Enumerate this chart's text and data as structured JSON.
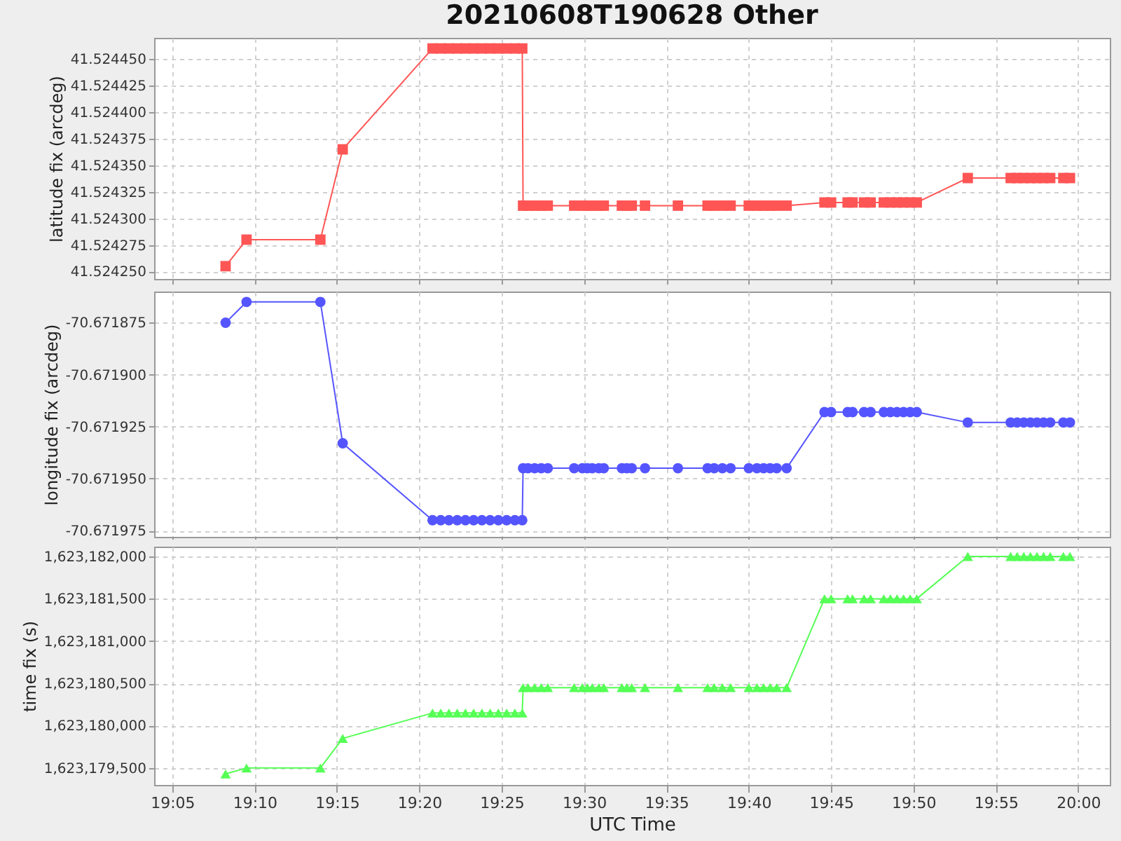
{
  "chart_data": [
    {
      "type": "line",
      "title": "20210608T190628 Other",
      "ylabel": "latitude fix (arcdeg)",
      "marker": "square",
      "grid": true,
      "tick_labels": "y",
      "x": [
        19.1373,
        19.1585,
        19.2332,
        19.2558,
        19.3467,
        19.355,
        19.3633,
        19.3717,
        19.38,
        19.3883,
        19.3967,
        19.405,
        19.4133,
        19.4217,
        19.43,
        19.4375,
        19.4383,
        19.4433,
        19.45,
        19.4567,
        19.4633,
        19.49,
        19.4983,
        19.5033,
        19.5083,
        19.515,
        19.52,
        19.5383,
        19.5433,
        19.5483,
        19.5617,
        19.595,
        19.625,
        19.6317,
        19.64,
        19.6483,
        19.6667,
        19.675,
        19.6817,
        19.6883,
        19.695,
        19.705,
        19.7433,
        19.75,
        19.7667,
        19.7717,
        19.7833,
        19.79,
        19.8033,
        19.81,
        19.8167,
        19.8233,
        19.83,
        19.8367,
        19.8883,
        19.9317,
        19.9383,
        19.945,
        19.9517,
        19.9583,
        19.965,
        19.9717,
        19.985,
        19.9917
      ],
      "series": [
        {
          "color": "#ff5555",
          "values": [
            41.524255,
            41.52428,
            41.52428,
            41.524365,
            41.52446,
            41.52446,
            41.52446,
            41.52446,
            41.52446,
            41.52446,
            41.52446,
            41.52446,
            41.52446,
            41.52446,
            41.52446,
            41.52446,
            41.524312,
            41.524312,
            41.524312,
            41.524312,
            41.524312,
            41.524312,
            41.524312,
            41.524312,
            41.524312,
            41.524312,
            41.524312,
            41.524312,
            41.524312,
            41.524312,
            41.524312,
            41.524312,
            41.524312,
            41.524312,
            41.524312,
            41.524312,
            41.524312,
            41.524312,
            41.524312,
            41.524312,
            41.524312,
            41.524312,
            41.524315,
            41.524315,
            41.524315,
            41.524315,
            41.524315,
            41.524315,
            41.524315,
            41.524315,
            41.524315,
            41.524315,
            41.524315,
            41.524315,
            41.524338,
            41.524338,
            41.524338,
            41.524338,
            41.524338,
            41.524338,
            41.524338,
            41.524338,
            41.524338,
            41.524338
          ]
        }
      ],
      "xlim": [
        19.065,
        20.032
      ],
      "xticks": [
        {
          "value": 19.083333,
          "label": null
        },
        {
          "value": 19.166667,
          "label": null
        },
        {
          "value": 19.25,
          "label": null
        },
        {
          "value": 19.333333,
          "label": null
        },
        {
          "value": 19.416667,
          "label": null
        },
        {
          "value": 19.5,
          "label": null
        },
        {
          "value": 19.583333,
          "label": null
        },
        {
          "value": 19.666667,
          "label": null
        },
        {
          "value": 19.75,
          "label": null
        },
        {
          "value": 19.833333,
          "label": null
        },
        {
          "value": 19.916667,
          "label": null
        },
        {
          "value": 20,
          "label": null
        }
      ],
      "ylim": [
        41.524243,
        41.52447
      ],
      "yticks": [
        {
          "value": 41.52425,
          "label": "41.524250"
        },
        {
          "value": 41.524275,
          "label": "41.524275"
        },
        {
          "value": 41.5243,
          "label": "41.524300"
        },
        {
          "value": 41.524325,
          "label": "41.524325"
        },
        {
          "value": 41.52435,
          "label": "41.524350"
        },
        {
          "value": 41.524375,
          "label": "41.524375"
        },
        {
          "value": 41.5244,
          "label": "41.524400"
        },
        {
          "value": 41.524425,
          "label": "41.524425"
        },
        {
          "value": 41.52445,
          "label": "41.524450"
        }
      ]
    },
    {
      "type": "line",
      "ylabel": "longitude fix (arcdeg)",
      "marker": "circle",
      "grid": true,
      "tick_labels": "y",
      "x": [
        19.1373,
        19.1585,
        19.2332,
        19.2558,
        19.3467,
        19.355,
        19.3633,
        19.3717,
        19.38,
        19.3883,
        19.3967,
        19.405,
        19.4133,
        19.4217,
        19.43,
        19.4375,
        19.4383,
        19.4433,
        19.45,
        19.4567,
        19.4633,
        19.49,
        19.4983,
        19.5033,
        19.5083,
        19.515,
        19.52,
        19.5383,
        19.5433,
        19.5483,
        19.5617,
        19.595,
        19.625,
        19.6317,
        19.64,
        19.6483,
        19.6667,
        19.675,
        19.6817,
        19.6883,
        19.695,
        19.705,
        19.7433,
        19.75,
        19.7667,
        19.7717,
        19.7833,
        19.79,
        19.8033,
        19.81,
        19.8167,
        19.8233,
        19.83,
        19.8367,
        19.8883,
        19.9317,
        19.9383,
        19.945,
        19.9517,
        19.9583,
        19.965,
        19.9717,
        19.985,
        19.9917
      ],
      "series": [
        {
          "color": "#5555ff",
          "values": [
            -70.671875,
            -70.671865,
            -70.671865,
            -70.671933,
            -70.67197,
            -70.67197,
            -70.67197,
            -70.67197,
            -70.67197,
            -70.67197,
            -70.67197,
            -70.67197,
            -70.67197,
            -70.67197,
            -70.67197,
            -70.67197,
            -70.671945,
            -70.671945,
            -70.671945,
            -70.671945,
            -70.671945,
            -70.671945,
            -70.671945,
            -70.671945,
            -70.671945,
            -70.671945,
            -70.671945,
            -70.671945,
            -70.671945,
            -70.671945,
            -70.671945,
            -70.671945,
            -70.671945,
            -70.671945,
            -70.671945,
            -70.671945,
            -70.671945,
            -70.671945,
            -70.671945,
            -70.671945,
            -70.671945,
            -70.671945,
            -70.671918,
            -70.671918,
            -70.671918,
            -70.671918,
            -70.671918,
            -70.671918,
            -70.671918,
            -70.671918,
            -70.671918,
            -70.671918,
            -70.671918,
            -70.671918,
            -70.671923,
            -70.671923,
            -70.671923,
            -70.671923,
            -70.671923,
            -70.671923,
            -70.671923,
            -70.671923,
            -70.671923,
            -70.671923
          ]
        }
      ],
      "xlim": [
        19.065,
        20.032
      ],
      "xticks": [
        {
          "value": 19.083333,
          "label": null
        },
        {
          "value": 19.166667,
          "label": null
        },
        {
          "value": 19.25,
          "label": null
        },
        {
          "value": 19.333333,
          "label": null
        },
        {
          "value": 19.416667,
          "label": null
        },
        {
          "value": 19.5,
          "label": null
        },
        {
          "value": 19.583333,
          "label": null
        },
        {
          "value": 19.666667,
          "label": null
        },
        {
          "value": 19.75,
          "label": null
        },
        {
          "value": 19.833333,
          "label": null
        },
        {
          "value": 19.916667,
          "label": null
        },
        {
          "value": 20,
          "label": null
        }
      ],
      "ylim": [
        -70.671978,
        -70.67186
      ],
      "yticks": [
        {
          "value": -70.671975,
          "label": "-70.671975"
        },
        {
          "value": -70.67195,
          "label": "-70.671950"
        },
        {
          "value": -70.671925,
          "label": "-70.671925"
        },
        {
          "value": -70.6719,
          "label": "-70.671900"
        },
        {
          "value": -70.671875,
          "label": "-70.671875"
        }
      ]
    },
    {
      "type": "line",
      "xlabel": "UTC Time",
      "ylabel": "time fix (s)",
      "marker": "triangle",
      "grid": true,
      "x": [
        19.1373,
        19.1585,
        19.2332,
        19.2558,
        19.3467,
        19.355,
        19.3633,
        19.3717,
        19.38,
        19.3883,
        19.3967,
        19.405,
        19.4133,
        19.4217,
        19.43,
        19.4375,
        19.4383,
        19.4433,
        19.45,
        19.4567,
        19.4633,
        19.49,
        19.4983,
        19.5033,
        19.5083,
        19.515,
        19.52,
        19.5383,
        19.5433,
        19.5483,
        19.5617,
        19.595,
        19.625,
        19.6317,
        19.64,
        19.6483,
        19.6667,
        19.675,
        19.6817,
        19.6883,
        19.695,
        19.705,
        19.7433,
        19.75,
        19.7667,
        19.7717,
        19.7833,
        19.79,
        19.8033,
        19.81,
        19.8167,
        19.8233,
        19.83,
        19.8367,
        19.8883,
        19.9317,
        19.9383,
        19.945,
        19.9517,
        19.9583,
        19.965,
        19.9717,
        19.985,
        19.9917
      ],
      "series": [
        {
          "color": "#55ff55",
          "values": [
            1623179430,
            1623179500,
            1623179500,
            1623179850,
            1623180150,
            1623180150,
            1623180150,
            1623180150,
            1623180150,
            1623180150,
            1623180150,
            1623180150,
            1623180150,
            1623180150,
            1623180150,
            1623180150,
            1623180450,
            1623180450,
            1623180450,
            1623180450,
            1623180450,
            1623180450,
            1623180450,
            1623180450,
            1623180450,
            1623180450,
            1623180450,
            1623180450,
            1623180450,
            1623180450,
            1623180450,
            1623180450,
            1623180450,
            1623180450,
            1623180450,
            1623180450,
            1623180450,
            1623180450,
            1623180450,
            1623180450,
            1623180450,
            1623180450,
            1623181500,
            1623181500,
            1623181500,
            1623181500,
            1623181500,
            1623181500,
            1623181500,
            1623181500,
            1623181500,
            1623181500,
            1623181500,
            1623181500,
            1623182000,
            1623182000,
            1623182000,
            1623182000,
            1623182000,
            1623182000,
            1623182000,
            1623182000,
            1623182000,
            1623182000
          ]
        }
      ],
      "xlim": [
        19.065,
        20.032
      ],
      "xticks": [
        {
          "value": 19.083333,
          "label": "19:05"
        },
        {
          "value": 19.166667,
          "label": "19:10"
        },
        {
          "value": 19.25,
          "label": "19:15"
        },
        {
          "value": 19.333333,
          "label": "19:20"
        },
        {
          "value": 19.416667,
          "label": "19:25"
        },
        {
          "value": 19.5,
          "label": "19:30"
        },
        {
          "value": 19.583333,
          "label": "19:35"
        },
        {
          "value": 19.666667,
          "label": "19:40"
        },
        {
          "value": 19.75,
          "label": "19:45"
        },
        {
          "value": 19.833333,
          "label": "19:50"
        },
        {
          "value": 19.916667,
          "label": "19:55"
        },
        {
          "value": 20,
          "label": "20:00"
        }
      ],
      "ylim": [
        1623179300,
        1623182116
      ],
      "yticks": [
        {
          "value": 1623179500,
          "label": "1,623,179,500"
        },
        {
          "value": 1623180000,
          "label": "1,623,180,000"
        },
        {
          "value": 1623180500,
          "label": "1,623,180,500"
        },
        {
          "value": 1623181000,
          "label": "1,623,181,000"
        },
        {
          "value": 1623181500,
          "label": "1,623,181,500"
        },
        {
          "value": 1623182000,
          "label": "1,623,182,000"
        }
      ]
    }
  ]
}
